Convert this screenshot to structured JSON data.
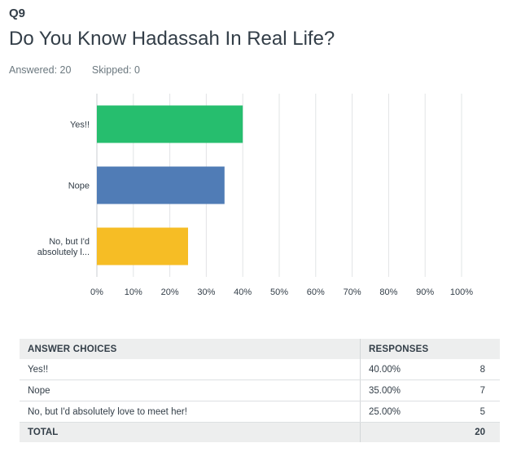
{
  "question": {
    "number": "Q9",
    "title": "Do You Know Hadassah In Real Life?",
    "answered": "Answered: 20",
    "skipped": "Skipped: 0"
  },
  "chart_data": {
    "type": "bar",
    "orientation": "horizontal",
    "categories": [
      "Yes!!",
      "Nope",
      "No, but I'd absolutely l..."
    ],
    "values": [
      40,
      35,
      25
    ],
    "colors": [
      "#26be6e",
      "#507cb6",
      "#f6bd25"
    ],
    "xlim": [
      0,
      100
    ],
    "xticks": [
      "0%",
      "10%",
      "20%",
      "30%",
      "40%",
      "50%",
      "60%",
      "70%",
      "80%",
      "90%",
      "100%"
    ],
    "grid": true
  },
  "table": {
    "headers": [
      "ANSWER CHOICES",
      "RESPONSES"
    ],
    "rows": [
      {
        "choice": "Yes!!",
        "percent": "40.00%",
        "count": "8"
      },
      {
        "choice": "Nope",
        "percent": "35.00%",
        "count": "7"
      },
      {
        "choice": "No, but I'd absolutely love to meet her!",
        "percent": "25.00%",
        "count": "5"
      }
    ],
    "total_label": "TOTAL",
    "total_count": "20"
  }
}
